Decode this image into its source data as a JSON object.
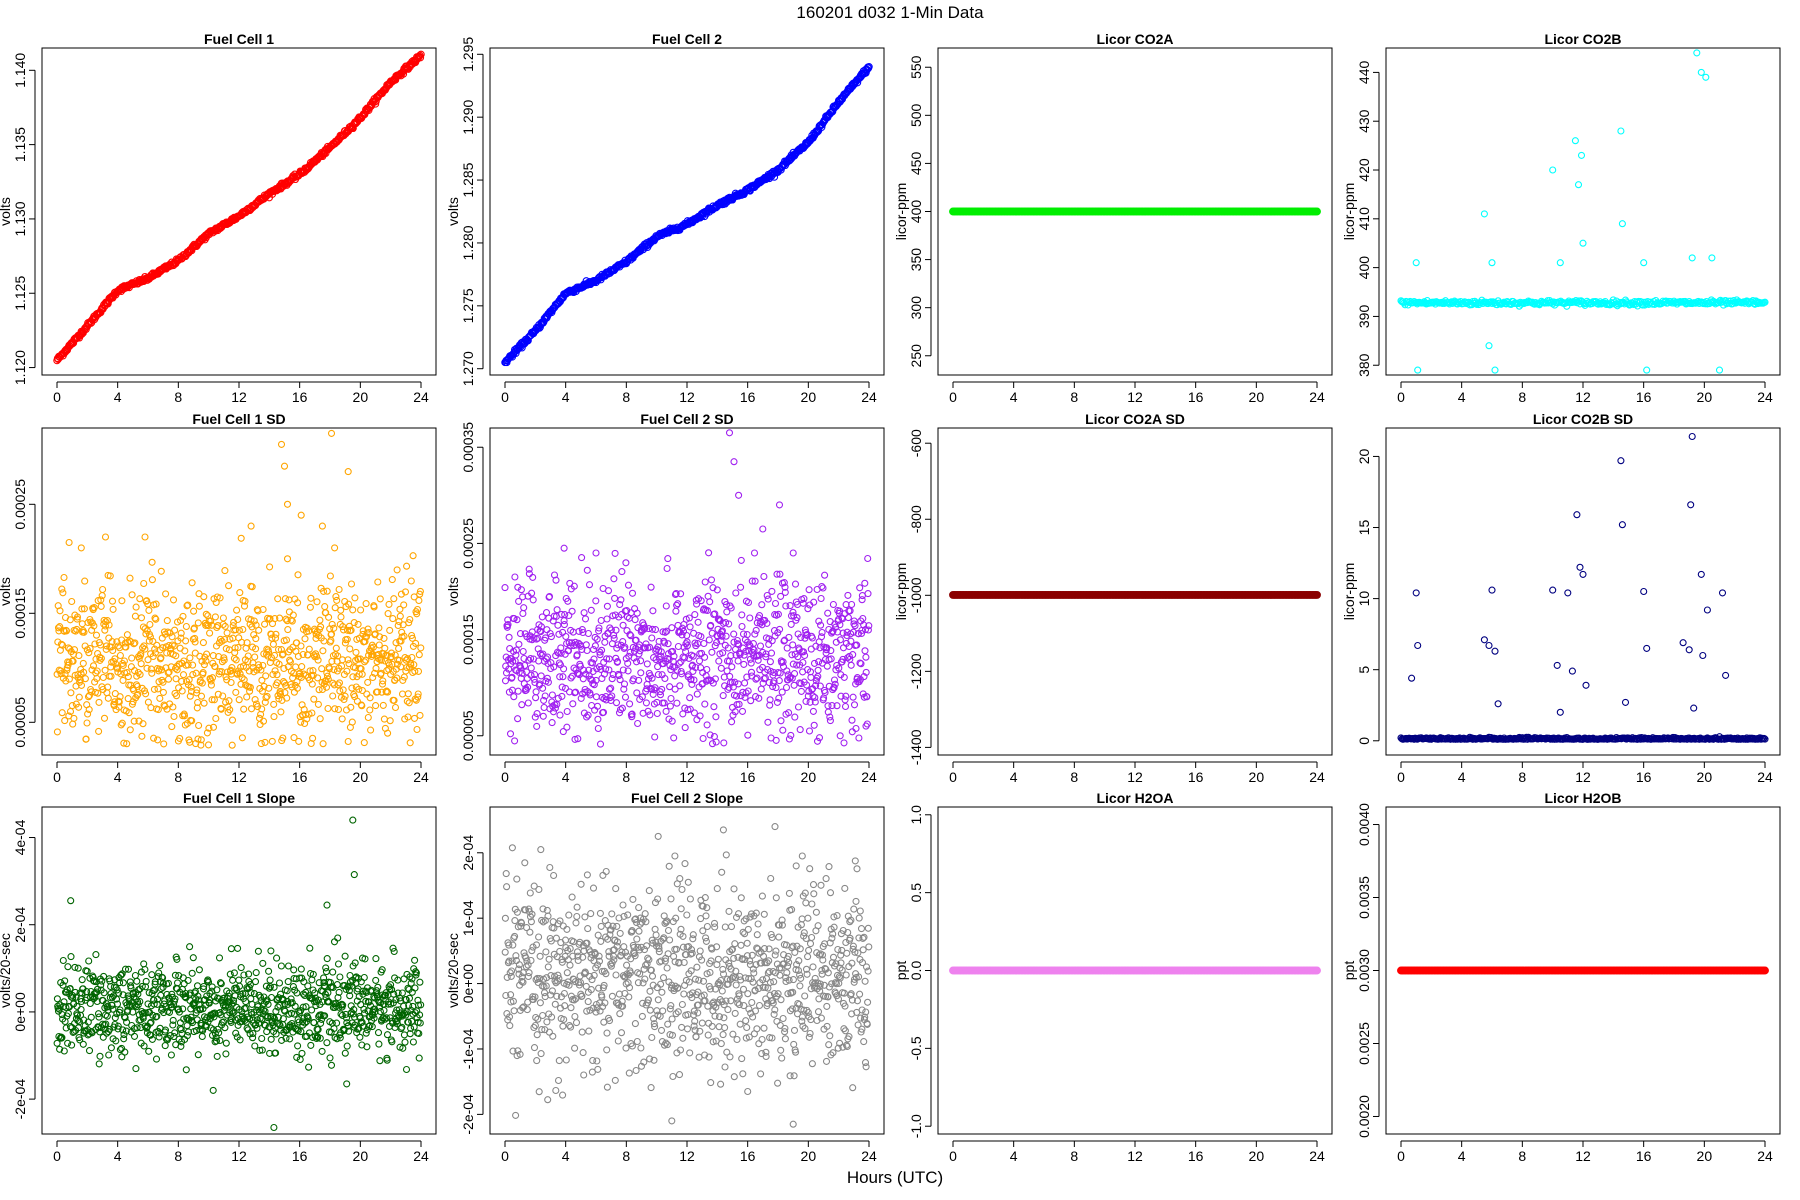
{
  "figure": {
    "title": "160201    d032    1-Min Data",
    "xlabel": "Hours (UTC)"
  },
  "chart_data": [
    {
      "id": "fc1",
      "type": "scatter",
      "title": "Fuel Cell 1",
      "ylabel": "volts",
      "color": "#ff0000",
      "marker": "filled-circle-dense",
      "xlim": [
        0,
        24
      ],
      "xticks": [
        0,
        4,
        8,
        12,
        16,
        20,
        24
      ],
      "ylim": [
        1.1195,
        1.1415
      ],
      "yticks": [
        1.12,
        1.125,
        1.13,
        1.135,
        1.14
      ],
      "ytick_labels": [
        "1.120",
        "1.125",
        "1.130",
        "1.135",
        "1.140"
      ],
      "x": [
        0,
        2,
        4,
        6,
        8,
        10,
        12,
        14,
        16,
        18,
        20,
        22,
        24
      ],
      "y": [
        1.1205,
        1.1228,
        1.1252,
        1.126,
        1.1272,
        1.129,
        1.1302,
        1.1317,
        1.133,
        1.1348,
        1.1368,
        1.1392,
        1.141
      ]
    },
    {
      "id": "fc2",
      "type": "scatter",
      "title": "Fuel Cell 2",
      "ylabel": "volts",
      "color": "#0000ff",
      "marker": "filled-circle-dense",
      "xlim": [
        0,
        24
      ],
      "xticks": [
        0,
        4,
        8,
        12,
        16,
        20,
        24
      ],
      "ylim": [
        1.2695,
        1.2955
      ],
      "yticks": [
        1.27,
        1.275,
        1.28,
        1.285,
        1.29,
        1.295
      ],
      "ytick_labels": [
        "1.270",
        "1.275",
        "1.280",
        "1.285",
        "1.290",
        "1.295"
      ],
      "x": [
        0,
        2,
        4,
        6,
        8,
        10,
        12,
        14,
        16,
        18,
        20,
        22,
        24
      ],
      "y": [
        1.2705,
        1.273,
        1.276,
        1.277,
        1.2785,
        1.2805,
        1.2815,
        1.283,
        1.2842,
        1.2858,
        1.288,
        1.2912,
        1.294
      ]
    },
    {
      "id": "co2a",
      "type": "scatter",
      "title": "Licor CO2A",
      "ylabel": "licor-ppm",
      "color": "#00ee00",
      "marker": "filled-circle-dense",
      "xlim": [
        0,
        24
      ],
      "xticks": [
        0,
        4,
        8,
        12,
        16,
        20,
        24
      ],
      "ylim": [
        230,
        570
      ],
      "yticks": [
        250,
        300,
        350,
        400,
        450,
        500,
        550
      ],
      "ytick_labels": [
        "250",
        "300",
        "350",
        "400",
        "450",
        "500",
        "550"
      ],
      "x": [
        0,
        24
      ],
      "y": [
        400,
        400
      ]
    },
    {
      "id": "co2b",
      "type": "scatter",
      "title": "Licor CO2B",
      "ylabel": "licor-ppm",
      "color": "#00ffff",
      "marker": "open-circle",
      "xlim": [
        0,
        24
      ],
      "xticks": [
        0,
        4,
        8,
        12,
        16,
        20,
        24
      ],
      "ylim": [
        378,
        445
      ],
      "yticks": [
        380,
        390,
        400,
        410,
        420,
        430,
        440
      ],
      "ytick_labels": [
        "380",
        "390",
        "400",
        "410",
        "420",
        "430",
        "440"
      ],
      "baseline": 392.8,
      "x": [
        1.0,
        1.1,
        5.5,
        5.8,
        6.0,
        6.2,
        10.0,
        10.5,
        11.5,
        11.7,
        11.9,
        12.0,
        14.5,
        14.6,
        16.0,
        16.2,
        19.2,
        19.5,
        19.8,
        20.1,
        20.5,
        21.0
      ],
      "y": [
        401,
        379,
        411,
        384,
        401,
        379,
        420,
        401,
        426,
        417,
        423,
        405,
        428,
        409,
        401,
        379,
        402,
        444,
        440,
        439,
        402,
        379
      ]
    },
    {
      "id": "fc1sd",
      "type": "scatter",
      "title": "Fuel Cell 1 SD",
      "ylabel": "volts",
      "color": "#ffa500",
      "marker": "open-circle-noise",
      "xlim": [
        0,
        24
      ],
      "xticks": [
        0,
        4,
        8,
        12,
        16,
        20,
        24
      ],
      "ylim": [
        2e-05,
        0.00032
      ],
      "yticks": [
        5e-05,
        0.00015,
        0.00025
      ],
      "ytick_labels": [
        "0.00005",
        "0.00015",
        "0.00025"
      ],
      "center": 0.000105,
      "spread": 3.5e-05,
      "x": [
        0.8,
        1.6,
        3.2,
        5.8,
        12.8,
        14.8,
        15.0,
        15.2,
        16.1,
        17.5,
        18.1,
        18.3,
        19.2,
        21.8
      ],
      "y": [
        0.000215,
        0.00021,
        0.00022,
        0.00022,
        0.00023,
        0.000305,
        0.000285,
        0.00025,
        0.00024,
        0.00023,
        0.000315,
        0.00021,
        0.00028,
        4e-05
      ]
    },
    {
      "id": "fc2sd",
      "type": "scatter",
      "title": "Fuel Cell 2 SD",
      "ylabel": "volts",
      "color": "#a020f0",
      "marker": "open-circle-noise",
      "xlim": [
        0,
        24
      ],
      "xticks": [
        0,
        4,
        8,
        12,
        16,
        20,
        24
      ],
      "ylim": [
        3e-05,
        0.00037
      ],
      "yticks": [
        5e-05,
        0.00015,
        0.00025,
        0.00035
      ],
      "ytick_labels": [
        "0.00005",
        "0.00015",
        "0.00025",
        "0.00035"
      ],
      "center": 0.000135,
      "spread": 4e-05,
      "x": [
        3.9,
        6.0,
        14.8,
        15.1,
        15.4,
        17.0,
        18.1,
        19.0,
        22.1,
        23.8
      ],
      "y": [
        0.000245,
        0.00024,
        0.000365,
        0.000335,
        0.0003,
        0.000265,
        0.00029,
        0.00024,
        5e-05,
        6e-05
      ]
    },
    {
      "id": "co2asd",
      "type": "scatter",
      "title": "Licor CO2A SD",
      "ylabel": "licor-ppm",
      "color": "#8b0000",
      "marker": "filled-circle-dense",
      "xlim": [
        0,
        24
      ],
      "xticks": [
        0,
        4,
        8,
        12,
        16,
        20,
        24
      ],
      "ylim": [
        -1420,
        -560
      ],
      "yticks": [
        -1400,
        -1200,
        -1000,
        -800,
        -600
      ],
      "ytick_labels": [
        "-1400",
        "-1200",
        "-1000",
        "-800",
        "-600"
      ],
      "x": [
        0,
        24
      ],
      "y": [
        -999,
        -999
      ]
    },
    {
      "id": "co2bsd",
      "type": "scatter",
      "title": "Licor CO2B SD",
      "ylabel": "licor-ppm",
      "color": "#000080",
      "marker": "open-circle-baseline",
      "xlim": [
        0,
        24
      ],
      "xticks": [
        0,
        4,
        8,
        12,
        16,
        20,
        24
      ],
      "ylim": [
        -1,
        22
      ],
      "yticks": [
        0,
        5,
        10,
        15,
        20
      ],
      "ytick_labels": [
        "0",
        "5",
        "10",
        "15",
        "20"
      ],
      "baseline": 0.1,
      "x": [
        0.7,
        1.0,
        1.1,
        5.5,
        5.8,
        6.0,
        6.2,
        6.4,
        10.0,
        10.3,
        10.5,
        11.0,
        11.3,
        11.6,
        11.8,
        12.0,
        12.2,
        14.5,
        14.6,
        14.8,
        16.0,
        16.2,
        18.6,
        19.0,
        19.1,
        19.2,
        19.3,
        19.8,
        19.9,
        20.2,
        21.2,
        21.4
      ],
      "y": [
        4.4,
        10.4,
        6.7,
        7.1,
        6.7,
        10.6,
        6.3,
        2.6,
        10.6,
        5.3,
        2.0,
        10.4,
        4.9,
        15.9,
        12.2,
        11.7,
        3.9,
        19.7,
        15.2,
        2.7,
        10.5,
        6.5,
        6.9,
        6.4,
        16.6,
        21.4,
        2.3,
        11.7,
        6.0,
        9.2,
        10.4,
        4.6
      ]
    },
    {
      "id": "fc1slope",
      "type": "scatter",
      "title": "Fuel Cell 1 Slope",
      "ylabel": "volts/20-sec",
      "color": "#006400",
      "marker": "open-circle-noise",
      "xlim": [
        0,
        24
      ],
      "xticks": [
        0,
        4,
        8,
        12,
        16,
        20,
        24
      ],
      "ylim": [
        -0.00028,
        0.00047
      ],
      "yticks": [
        -0.0002,
        0,
        0.0002,
        0.0004
      ],
      "ytick_labels": [
        "-2e-04",
        "0e+00",
        "2e-04",
        "4e-04"
      ],
      "center": 1e-05,
      "spread": 5e-05,
      "x": [
        0.9,
        5.2,
        10.3,
        11.5,
        14.1,
        14.3,
        17.8,
        19.1,
        19.5,
        19.6
      ],
      "y": [
        0.000255,
        -0.00013,
        -0.00018,
        0.000145,
        0.00014,
        -0.000265,
        0.000245,
        -0.000165,
        0.00044,
        0.000315
      ]
    },
    {
      "id": "fc2slope",
      "type": "scatter",
      "title": "Fuel Cell 2 Slope",
      "ylabel": "volts/20-sec",
      "color": "#888888",
      "marker": "open-circle-noise",
      "xlim": [
        0,
        24
      ],
      "xticks": [
        0,
        4,
        8,
        12,
        16,
        20,
        24
      ],
      "ylim": [
        -0.00023,
        0.00027
      ],
      "yticks": [
        -0.0002,
        -0.0001,
        0,
        0.0001,
        0.0002
      ],
      "ytick_labels": [
        "-2e-04",
        "-1e-04",
        "0e+00",
        "1e-04",
        "2e-04"
      ],
      "center": 1e-05,
      "spread": 7e-05,
      "x": [
        10.1,
        11.0,
        11.2,
        14.4,
        16.0,
        17.2,
        17.8,
        19.0,
        19.2,
        19.6
      ],
      "y": [
        0.000225,
        -0.00021,
        0.000195,
        0.000235,
        -0.000165,
        -0.000105,
        0.00024,
        -0.000215,
        0.00018,
        0.000195
      ]
    },
    {
      "id": "h2oa",
      "type": "scatter",
      "title": "Licor H2OA",
      "ylabel": "ppt",
      "color": "#ee82ee",
      "marker": "filled-circle-dense",
      "xlim": [
        0,
        24
      ],
      "xticks": [
        0,
        4,
        8,
        12,
        16,
        20,
        24
      ],
      "ylim": [
        -1.05,
        1.05
      ],
      "yticks": [
        -1.0,
        -0.5,
        0.0,
        0.5,
        1.0
      ],
      "ytick_labels": [
        "-1.0",
        "-0.5",
        "0.0",
        "0.5",
        "1.0"
      ],
      "x": [
        0,
        24
      ],
      "y": [
        0,
        0
      ]
    },
    {
      "id": "h2ob",
      "type": "scatter",
      "title": "Licor H2OB",
      "ylabel": "ppt",
      "color": "#ff0000",
      "marker": "filled-circle-dense",
      "xlim": [
        0,
        24
      ],
      "xticks": [
        0,
        4,
        8,
        12,
        16,
        20,
        24
      ],
      "ylim": [
        0.00188,
        0.00412
      ],
      "yticks": [
        0.002,
        0.0025,
        0.003,
        0.0035,
        0.004
      ],
      "ytick_labels": [
        "0.0020",
        "0.0025",
        "0.0030",
        "0.0035",
        "0.0040"
      ],
      "x": [
        0,
        24
      ],
      "y": [
        0.003,
        0.003
      ]
    }
  ]
}
